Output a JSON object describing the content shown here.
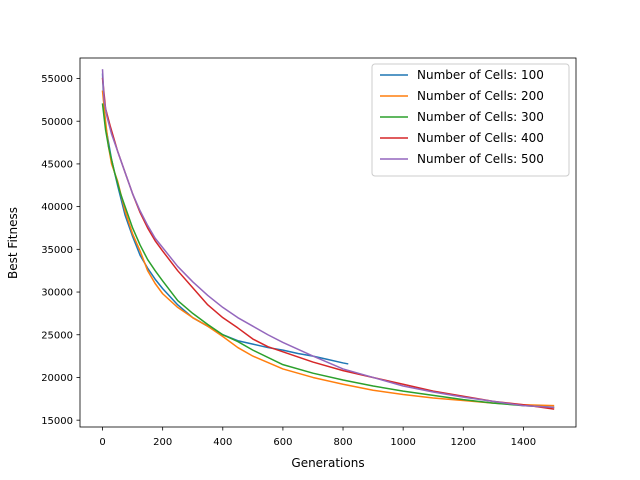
{
  "chart_data": {
    "type": "line",
    "title": "",
    "xlabel": "Generations",
    "ylabel": "Best Fitness",
    "xlim": [
      -75,
      1575
    ],
    "ylim": [
      14200,
      57400
    ],
    "xticks": [
      0,
      200,
      400,
      600,
      800,
      1000,
      1200,
      1400
    ],
    "yticks": [
      15000,
      20000,
      25000,
      30000,
      35000,
      40000,
      45000,
      50000,
      55000
    ],
    "legend_position": "top-right",
    "series": [
      {
        "name": "Number of Cells: 100",
        "color": "#1f77b4",
        "points": [
          [
            0,
            55500
          ],
          [
            5,
            51500
          ],
          [
            10,
            49500
          ],
          [
            20,
            47500
          ],
          [
            30,
            45500
          ],
          [
            50,
            42500
          ],
          [
            75,
            39000
          ],
          [
            100,
            36500
          ],
          [
            125,
            34300
          ],
          [
            150,
            32800
          ],
          [
            175,
            31500
          ],
          [
            200,
            30400
          ],
          [
            250,
            28500
          ],
          [
            300,
            27000
          ],
          [
            350,
            26000
          ],
          [
            400,
            25000
          ],
          [
            450,
            24300
          ],
          [
            500,
            23900
          ],
          [
            550,
            23500
          ],
          [
            600,
            23200
          ],
          [
            650,
            22800
          ],
          [
            700,
            22500
          ],
          [
            750,
            22100
          ],
          [
            800,
            21700
          ],
          [
            815,
            21600
          ]
        ]
      },
      {
        "name": "Number of Cells: 200",
        "color": "#ff7f0e",
        "points": [
          [
            0,
            53500
          ],
          [
            10,
            50000
          ],
          [
            20,
            47000
          ],
          [
            30,
            45000
          ],
          [
            50,
            43000
          ],
          [
            75,
            39500
          ],
          [
            100,
            36800
          ],
          [
            125,
            34800
          ],
          [
            150,
            32500
          ],
          [
            175,
            31000
          ],
          [
            200,
            29800
          ],
          [
            250,
            28200
          ],
          [
            300,
            27000
          ],
          [
            350,
            26000
          ],
          [
            400,
            24800
          ],
          [
            450,
            23500
          ],
          [
            500,
            22500
          ],
          [
            600,
            21000
          ],
          [
            700,
            20000
          ],
          [
            800,
            19200
          ],
          [
            900,
            18500
          ],
          [
            1000,
            18000
          ],
          [
            1100,
            17600
          ],
          [
            1200,
            17300
          ],
          [
            1300,
            17000
          ],
          [
            1400,
            16800
          ],
          [
            1500,
            16700
          ]
        ]
      },
      {
        "name": "Number of Cells: 300",
        "color": "#2ca02c",
        "points": [
          [
            0,
            52000
          ],
          [
            10,
            49000
          ],
          [
            20,
            47000
          ],
          [
            40,
            44000
          ],
          [
            60,
            41500
          ],
          [
            80,
            39500
          ],
          [
            100,
            37500
          ],
          [
            125,
            35500
          ],
          [
            150,
            33800
          ],
          [
            175,
            32500
          ],
          [
            200,
            31300
          ],
          [
            250,
            29000
          ],
          [
            300,
            27500
          ],
          [
            350,
            26200
          ],
          [
            400,
            25000
          ],
          [
            450,
            24200
          ],
          [
            500,
            23200
          ],
          [
            600,
            21500
          ],
          [
            700,
            20500
          ],
          [
            800,
            19700
          ],
          [
            900,
            19000
          ],
          [
            1000,
            18400
          ],
          [
            1100,
            17900
          ],
          [
            1200,
            17400
          ],
          [
            1300,
            17000
          ],
          [
            1400,
            16700
          ],
          [
            1500,
            16500
          ]
        ]
      },
      {
        "name": "Number of Cells: 400",
        "color": "#d62728",
        "points": [
          [
            0,
            55000
          ],
          [
            10,
            51500
          ],
          [
            25,
            49500
          ],
          [
            50,
            46500
          ],
          [
            75,
            44000
          ],
          [
            100,
            41500
          ],
          [
            125,
            39300
          ],
          [
            150,
            37500
          ],
          [
            175,
            36000
          ],
          [
            200,
            34800
          ],
          [
            250,
            32500
          ],
          [
            300,
            30500
          ],
          [
            350,
            28500
          ],
          [
            400,
            27000
          ],
          [
            450,
            25800
          ],
          [
            500,
            24500
          ],
          [
            550,
            23600
          ],
          [
            600,
            23000
          ],
          [
            700,
            21800
          ],
          [
            800,
            20800
          ],
          [
            900,
            20000
          ],
          [
            1000,
            19200
          ],
          [
            1100,
            18400
          ],
          [
            1200,
            17800
          ],
          [
            1300,
            17200
          ],
          [
            1400,
            16800
          ],
          [
            1500,
            16300
          ]
        ]
      },
      {
        "name": "Number of Cells: 500",
        "color": "#9467bd",
        "points": [
          [
            0,
            56000
          ],
          [
            5,
            52500
          ],
          [
            15,
            50500
          ],
          [
            30,
            48500
          ],
          [
            50,
            46500
          ],
          [
            75,
            44000
          ],
          [
            100,
            41500
          ],
          [
            125,
            39500
          ],
          [
            150,
            37800
          ],
          [
            175,
            36300
          ],
          [
            200,
            35200
          ],
          [
            250,
            33000
          ],
          [
            300,
            31200
          ],
          [
            350,
            29600
          ],
          [
            400,
            28200
          ],
          [
            450,
            27000
          ],
          [
            500,
            26000
          ],
          [
            550,
            25000
          ],
          [
            600,
            24100
          ],
          [
            700,
            22500
          ],
          [
            800,
            21000
          ],
          [
            900,
            20000
          ],
          [
            1000,
            19000
          ],
          [
            1100,
            18300
          ],
          [
            1200,
            17700
          ],
          [
            1300,
            17200
          ],
          [
            1400,
            16700
          ],
          [
            1500,
            16500
          ]
        ]
      }
    ]
  }
}
